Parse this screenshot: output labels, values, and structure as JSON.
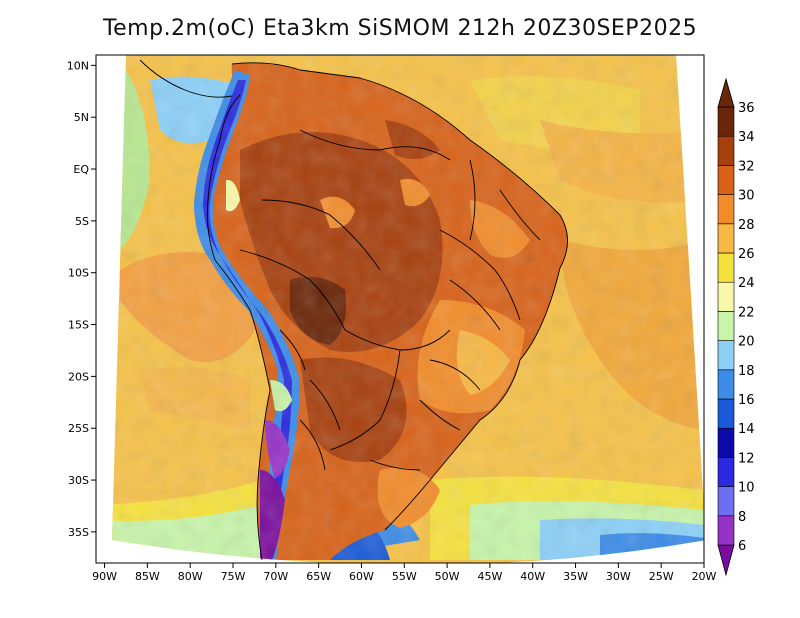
{
  "title": "Temp.2m(oC) Eta3km SiSMOM 212h 20Z30SEP2025",
  "map": {
    "variable": "Temp.2m",
    "unit": "oC",
    "model": "Eta3km SiSMOM",
    "forecast_hour": "212h",
    "valid_time": "20Z30SEP2025",
    "lon_range": [
      -91,
      -20
    ],
    "lat_range": [
      -38,
      11
    ],
    "lat_ticks": [
      {
        "label": "10N",
        "value": 10
      },
      {
        "label": "5N",
        "value": 5
      },
      {
        "label": "EQ",
        "value": 0
      },
      {
        "label": "5S",
        "value": -5
      },
      {
        "label": "10S",
        "value": -10
      },
      {
        "label": "15S",
        "value": -15
      },
      {
        "label": "20S",
        "value": -20
      },
      {
        "label": "25S",
        "value": -25
      },
      {
        "label": "30S",
        "value": -30
      },
      {
        "label": "35S",
        "value": -35
      }
    ],
    "lon_ticks": [
      {
        "label": "90W",
        "value": -90
      },
      {
        "label": "85W",
        "value": -85
      },
      {
        "label": "80W",
        "value": -80
      },
      {
        "label": "75W",
        "value": -75
      },
      {
        "label": "70W",
        "value": -70
      },
      {
        "label": "65W",
        "value": -65
      },
      {
        "label": "60W",
        "value": -60
      },
      {
        "label": "55W",
        "value": -55
      },
      {
        "label": "50W",
        "value": -50
      },
      {
        "label": "45W",
        "value": -45
      },
      {
        "label": "40W",
        "value": -40
      },
      {
        "label": "35W",
        "value": -35
      },
      {
        "label": "30W",
        "value": -30
      },
      {
        "label": "25W",
        "value": -25
      },
      {
        "label": "20W",
        "value": -20
      }
    ]
  },
  "colorbar": {
    "min": 6,
    "max": 36,
    "labels": [
      "6",
      "8",
      "10",
      "12",
      "14",
      "16",
      "18",
      "20",
      "22",
      "24",
      "26",
      "28",
      "30",
      "32",
      "34",
      "36"
    ],
    "colors": [
      "#7a0d9e",
      "#9632c8",
      "#6e6ef2",
      "#2a2ae0",
      "#0a0aaa",
      "#1a5ad8",
      "#3c8ce8",
      "#8cd0f8",
      "#c8f5aa",
      "#f8f8a8",
      "#f6e23e",
      "#f8b844",
      "#f28c2a",
      "#d86218",
      "#a8400e",
      "#6a2608"
    ],
    "colors_note": "first = below-6 triangle, 15 bands 6-8 ... 34-36, last = above-36 triangle"
  }
}
